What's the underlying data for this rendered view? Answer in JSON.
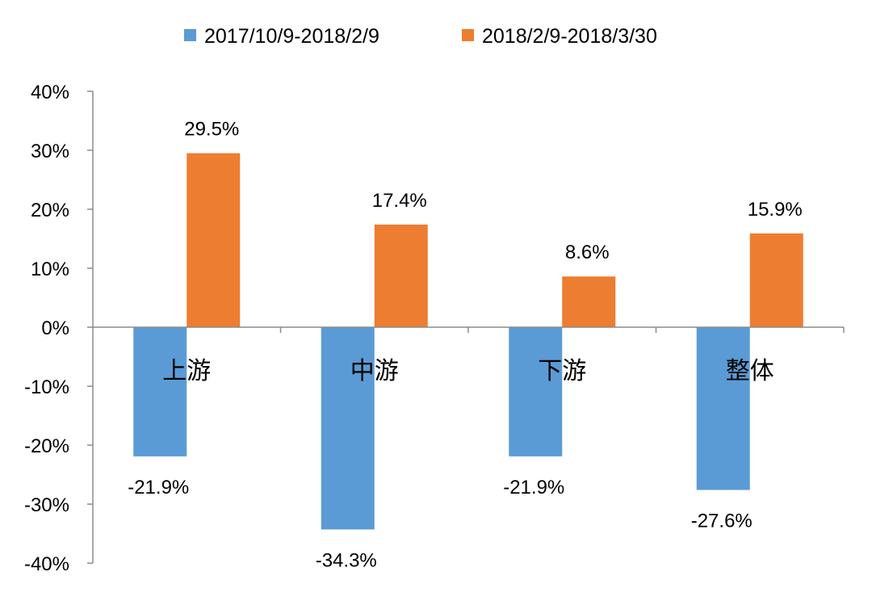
{
  "chart_data": {
    "type": "bar",
    "categories": [
      "上游",
      "中游",
      "下游",
      "整体"
    ],
    "series": [
      {
        "name": "2017/10/9-2018/2/9",
        "color": "#5b9bd5",
        "values": [
          -21.9,
          -34.3,
          -21.9,
          -27.6
        ],
        "labels": [
          "-21.9%",
          "-34.3%",
          "-21.9%",
          "-27.6%"
        ]
      },
      {
        "name": "2018/2/9-2018/3/30",
        "color": "#ed7d31",
        "values": [
          29.5,
          17.4,
          8.6,
          15.9
        ],
        "labels": [
          "29.5%",
          "17.4%",
          "8.6%",
          "15.9%"
        ]
      }
    ],
    "ylim": [
      -40,
      40
    ],
    "yticks": [
      40,
      30,
      20,
      10,
      0,
      -10,
      -20,
      -30,
      -40
    ],
    "ytick_labels": [
      "40%",
      "30%",
      "20%",
      "10%",
      "0%",
      "-10%",
      "-20%",
      "-30%",
      "-40%"
    ],
    "grid": false,
    "legend_position": "top-center"
  }
}
